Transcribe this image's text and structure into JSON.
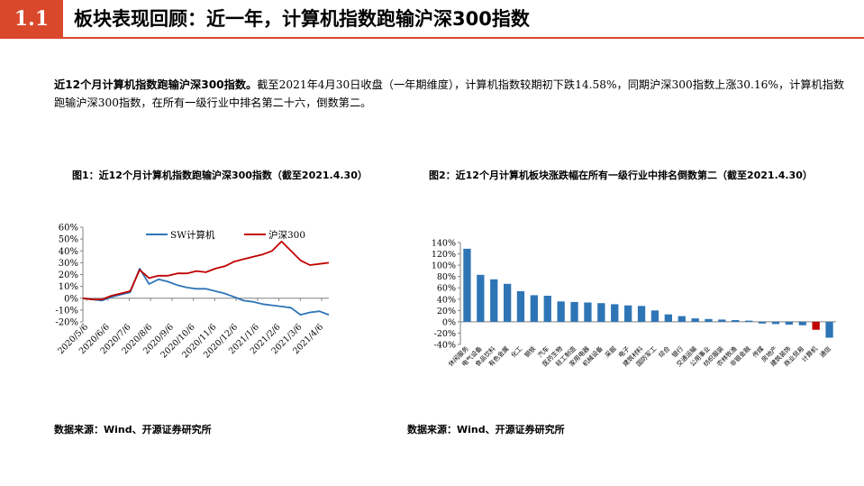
{
  "header": {
    "number": "1.1",
    "title": "板块表现回顾：近一年，计算机指数跑输沪深300指数"
  },
  "summary": {
    "bold": "近12个月计算机指数跑输沪深300指数。",
    "text": "截至2021年4月30日收盘（一年期维度），计算机指数较期初下跌14.58%，同期沪深300指数上涨30.16%，计算机指数跑输沪深300指数，在所有一级行业中排名第二十六，倒数第二。"
  },
  "figure1": {
    "title": "图1：近12个月计算机指数跑输沪深300指数（截至2021.4.30）"
  },
  "figure2": {
    "title": "图2：近12个月计算机板块涨跌幅在所有一级行业中排名倒数第二（截至2021.4.30）"
  },
  "source1": "数据来源：Wind、开源证券研究所",
  "source2": "数据来源：Wind、开源证券研究所",
  "chart_data": [
    {
      "type": "line",
      "y_ticks": [
        "60%",
        "50%",
        "40%",
        "30%",
        "20%",
        "10%",
        "0%",
        "-10%",
        "-20%"
      ],
      "ylim": [
        -20,
        60
      ],
      "x_ticks": [
        "2020/5/6",
        "2020/6/6",
        "2020/7/6",
        "2020/8/6",
        "2020/9/6",
        "2020/10/6",
        "2020/11/6",
        "2020/12/6",
        "2021/1/6",
        "2021/2/6",
        "2021/3/6",
        "2021/4/6"
      ],
      "legend_position": "top",
      "series": [
        {
          "name": "SW计算机",
          "color": "#2e75b6",
          "values": [
            0,
            -1,
            -2,
            1,
            3,
            5,
            25,
            12,
            16,
            14,
            11,
            9,
            8,
            8,
            6,
            4,
            1,
            -2,
            -3,
            -5,
            -6,
            -7,
            -8,
            -14,
            -12,
            -11,
            -14
          ]
        },
        {
          "name": "沪深300",
          "color": "#c00000",
          "values": [
            0,
            -1,
            -1,
            2,
            4,
            6,
            24,
            17,
            19,
            19,
            21,
            21,
            23,
            22,
            25,
            27,
            31,
            33,
            35,
            37,
            40,
            48,
            40,
            32,
            28,
            29,
            30
          ]
        }
      ]
    },
    {
      "type": "bar",
      "y_ticks": [
        "140%",
        "120%",
        "100%",
        "80%",
        "60%",
        "40%",
        "20%",
        "0%",
        "-20%",
        "-40%"
      ],
      "ylim": [
        -40,
        140
      ],
      "categories": [
        "休闲服务",
        "电气设备",
        "食品饮料",
        "有色金属",
        "化工",
        "钢铁",
        "汽车",
        "医药生物",
        "轻工制造",
        "家用电器",
        "机械设备",
        "采掘",
        "电子",
        "建筑材料",
        "国防军工",
        "综合",
        "银行",
        "交通运输",
        "公用事业",
        "纺织服装",
        "农林牧渔",
        "非银金融",
        "传媒",
        "房地产",
        "建筑装饰",
        "商业贸易",
        "计算机",
        "通信"
      ],
      "values": [
        129,
        83,
        75,
        67,
        54,
        47,
        46,
        36,
        35,
        34,
        33,
        31,
        29,
        28,
        20,
        13,
        10,
        6,
        5,
        4,
        3,
        2,
        -3,
        -4,
        -5,
        -6,
        -14,
        -28
      ],
      "colors": {
        "default": "#2e75b6",
        "highlight": "#c00000"
      },
      "highlight_index": 26
    }
  ]
}
